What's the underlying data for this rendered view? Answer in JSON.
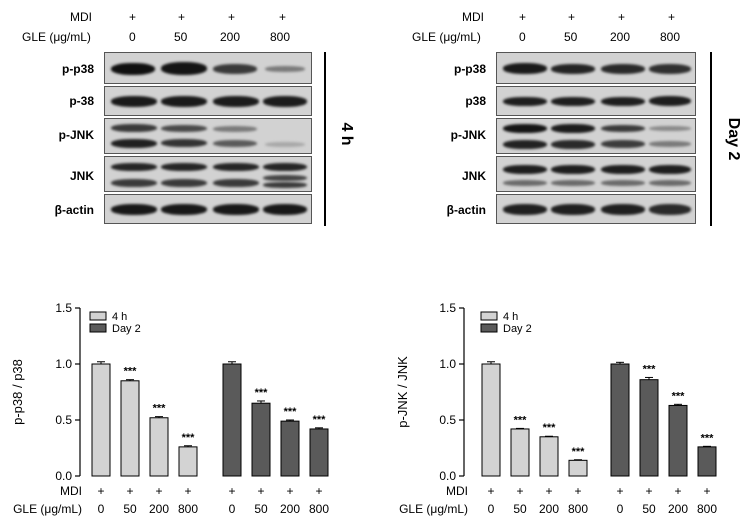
{
  "blots": {
    "left": {
      "mdi_label": "MDI",
      "gle_label": "GLE (μg/mL)",
      "mdi_marks": [
        "+",
        "+",
        "+",
        "+"
      ],
      "doses": [
        "0",
        "50",
        "200",
        "800"
      ],
      "rows": [
        "p-p38",
        "p-38",
        "p-JNK",
        "JNK",
        "β-actin"
      ],
      "time_label": "4 h"
    },
    "right": {
      "mdi_label": "MDI",
      "gle_label": "GLE (μg/mL)",
      "mdi_marks": [
        "+",
        "+",
        "+",
        "+"
      ],
      "doses": [
        "0",
        "50",
        "200",
        "800"
      ],
      "rows": [
        "p-p38",
        "p38",
        "p-JNK",
        "JNK",
        "β-actin"
      ],
      "time_label": "Day 2"
    }
  },
  "chart_data": [
    {
      "type": "bar",
      "ylabel": "p-p38 / p38",
      "ylim": [
        0,
        1.5
      ],
      "yticks": [
        "0.0",
        "0.5",
        "1.0",
        "1.5"
      ],
      "legend": [
        "4 h",
        "Day 2"
      ],
      "series": [
        {
          "name": "4 h",
          "color": "#d3d3d3",
          "values": [
            1.0,
            0.85,
            0.52,
            0.26
          ],
          "errors": [
            0.02,
            0.01,
            0.01,
            0.01
          ],
          "sig": [
            "",
            "***",
            "***",
            "***"
          ]
        },
        {
          "name": "Day 2",
          "color": "#5a5a5a",
          "values": [
            1.0,
            0.65,
            0.49,
            0.42
          ],
          "errors": [
            0.02,
            0.02,
            0.01,
            0.01
          ],
          "sig": [
            "",
            "***",
            "***",
            "***"
          ]
        }
      ],
      "mdi_label": "MDI",
      "gle_label": "GLE (μg/mL)",
      "mdi_marks": [
        "+",
        "+",
        "+",
        "+",
        "+",
        "+",
        "+",
        "+"
      ],
      "doses": [
        "0",
        "50",
        "200",
        "800",
        "0",
        "50",
        "200",
        "800"
      ]
    },
    {
      "type": "bar",
      "ylabel": "p-JNK / JNK",
      "ylim": [
        0,
        1.5
      ],
      "yticks": [
        "0.0",
        "0.5",
        "1.0",
        "1.5"
      ],
      "legend": [
        "4 h",
        "Day 2"
      ],
      "series": [
        {
          "name": "4 h",
          "color": "#d3d3d3",
          "values": [
            1.0,
            0.42,
            0.35,
            0.14
          ],
          "errors": [
            0.02,
            0.005,
            0.005,
            0.005
          ],
          "sig": [
            "",
            "***",
            "***",
            "***"
          ]
        },
        {
          "name": "Day 2",
          "color": "#5a5a5a",
          "values": [
            1.0,
            0.86,
            0.63,
            0.26
          ],
          "errors": [
            0.015,
            0.02,
            0.01,
            0.005
          ],
          "sig": [
            "",
            "***",
            "***",
            "***"
          ]
        }
      ],
      "mdi_label": "MDI",
      "gle_label": "GLE (μg/mL)",
      "mdi_marks": [
        "+",
        "+",
        "+",
        "+",
        "+",
        "+",
        "+",
        "+"
      ],
      "doses": [
        "0",
        "50",
        "200",
        "800",
        "0",
        "50",
        "200",
        "800"
      ]
    }
  ]
}
